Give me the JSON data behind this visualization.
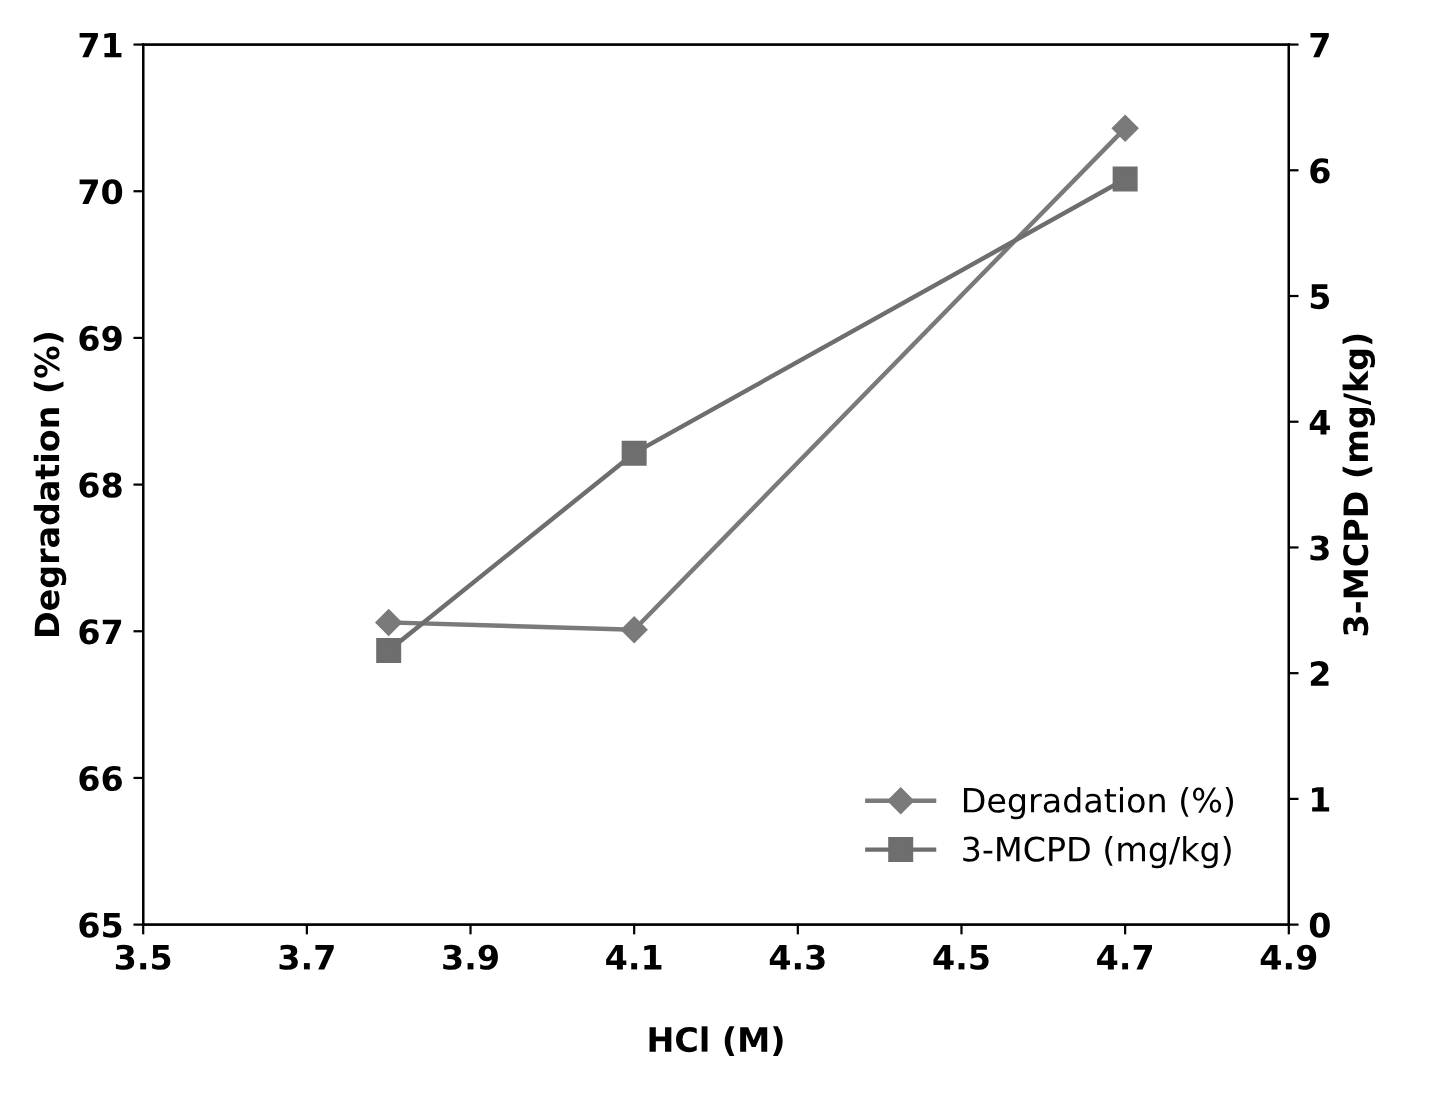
{
  "chart_data": {
    "type": "line",
    "xlabel": "HCl (M)",
    "ylabel": "Degradation (%)",
    "y2label": "3-MCPD (mg/kg)",
    "x": [
      3.8,
      4.1,
      4.7
    ],
    "series": [
      {
        "name": "Degradation (%)",
        "color": "#7a7a7a",
        "marker": "diamond",
        "values": [
          67.06,
          67.01,
          70.43
        ]
      },
      {
        "name": "3-MCPD (mg/kg)",
        "color": "#6e6e6e",
        "marker": "square",
        "axis": "y2",
        "values": [
          2.18,
          3.75,
          5.93
        ]
      }
    ],
    "xlim": [
      3.5,
      4.9
    ],
    "xticks": [
      3.5,
      3.7,
      3.9,
      4.1,
      4.3,
      4.5,
      4.7,
      4.9
    ],
    "ylim": [
      65,
      71
    ],
    "yticks": [
      65,
      66,
      67,
      68,
      69,
      70,
      71
    ],
    "y2lim": [
      0,
      7
    ],
    "y2ticks": [
      0,
      1,
      2,
      3,
      4,
      5,
      6,
      7
    ],
    "legend": "bottom right",
    "grid": false,
    "line_style": "solid"
  }
}
